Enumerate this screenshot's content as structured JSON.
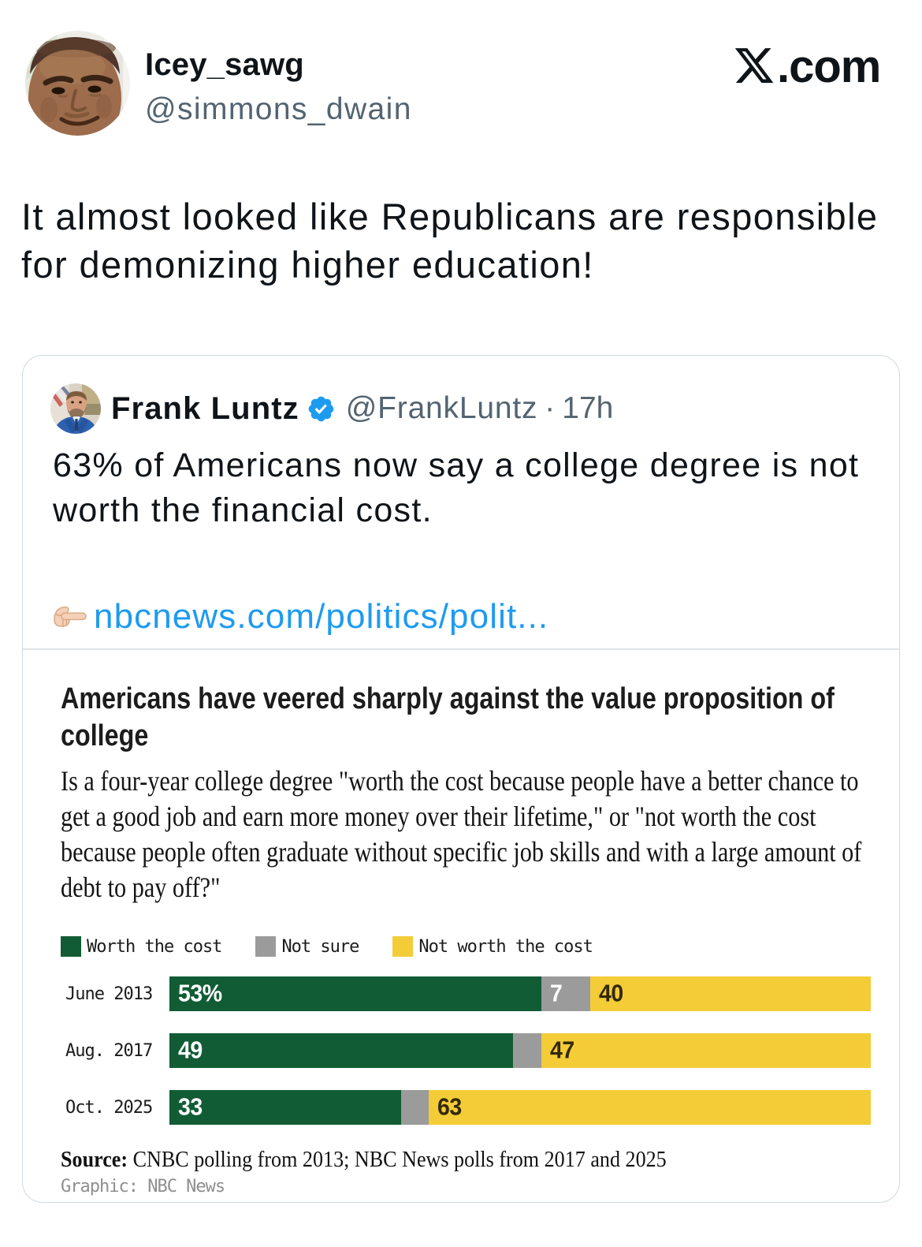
{
  "header": {
    "display_name": "Icey_sawg",
    "handle": "@simmons_dwain",
    "site_suffix": ".com"
  },
  "tweet": {
    "text": "It almost looked like Republicans are responsible for demonizing higher education!",
    "text_lines": [
      "It almost looked like Republicans are responsible",
      "for demonizing higher education!"
    ]
  },
  "quote": {
    "author": "Frank Luntz",
    "handle": "@FrankLuntz",
    "separator": "·",
    "timestamp": "17h",
    "text": "63% of Americans now say a college degree is not worth the financial cost.",
    "text_lines": [
      "63% of Americans now say a college degree is not",
      "worth the financial cost."
    ],
    "link_text": "nbcnews.com/politics/polit..."
  },
  "chart_data": {
    "type": "bar",
    "orientation": "horizontal",
    "stacked": true,
    "title": "Americans have veered sharply against the value proposition of college",
    "title_lines": [
      "Americans have veered sharply against the value proposition of",
      "college"
    ],
    "subtitle": "Is a four-year college degree \"worth the cost because people have a better chance to get a good job and earn more money over their lifetime,\" or \"not worth the cost because people often graduate without specific job skills and with a large amount of debt to pay off?\"",
    "subtitle_lines": [
      "Is a four-year college degree \"worth the cost because people have a better chance to",
      "get a good job and earn more money over their lifetime,\" or \"not worth the cost",
      "because people often graduate without specific job skills and with a large amount of",
      "debt to pay off?\""
    ],
    "categories": [
      "June 2013",
      "Aug. 2017",
      "Oct. 2025"
    ],
    "series": [
      {
        "name": "Worth the cost",
        "color": "#115c35",
        "values": [
          53,
          49,
          33
        ],
        "bar_labels": [
          "53%",
          "49",
          "33"
        ],
        "label_color": "#ffffff"
      },
      {
        "name": "Not sure",
        "color": "#9b9b9b",
        "values": [
          7,
          4,
          4
        ],
        "bar_labels": [
          "7",
          "",
          ""
        ],
        "label_color": "#ffffff"
      },
      {
        "name": "Not worth the cost",
        "color": "#f3cc37",
        "values": [
          40,
          47,
          63
        ],
        "bar_labels": [
          "40",
          "47",
          "63"
        ],
        "label_color": "#332908"
      }
    ],
    "xlim": [
      0,
      100
    ],
    "legend_position": "top",
    "grid": false,
    "source_label": "Source:",
    "source_text": " CNBC polling from 2013; NBC News polls from 2017 and 2025",
    "credit": "Graphic: NBC News"
  },
  "colors": {
    "accent_blue": "#1d9bf0",
    "text_primary": "#0f1419",
    "text_secondary": "#536471",
    "card_border": "#cfd9de",
    "chart_green": "#115c35",
    "chart_gray": "#9b9b9b",
    "chart_yellow": "#f3cc37"
  },
  "layout": {
    "bar_area_width": 890,
    "row_tops": [
      787,
      859,
      931
    ],
    "rows_total": 100
  }
}
